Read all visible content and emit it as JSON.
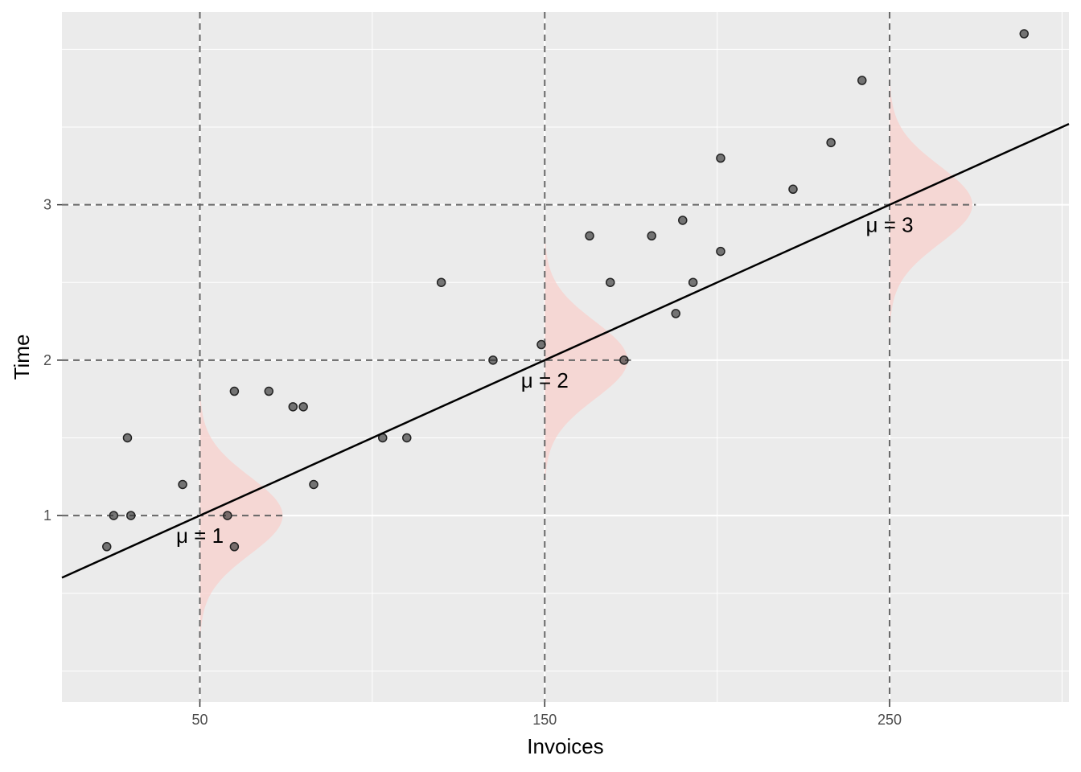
{
  "chart_data": {
    "type": "scatter",
    "title": "",
    "xlabel": "Invoices",
    "ylabel": "Time",
    "xlim": [
      10,
      302
    ],
    "ylim": [
      -0.2,
      4.24
    ],
    "x_ticks": [
      50,
      150,
      250
    ],
    "x_tick_labels": [
      "50",
      "150",
      "250"
    ],
    "x_minor_gridlines": [
      100,
      200,
      300
    ],
    "y_ticks": [
      1,
      2,
      3
    ],
    "y_tick_labels": [
      "1",
      "2",
      "3"
    ],
    "y_minor_gridlines": [
      0.0,
      0.5,
      1.5,
      2.5,
      3.5,
      4.0
    ],
    "grid": true,
    "legend": "none",
    "points": [
      {
        "x": 23,
        "y": 0.8
      },
      {
        "x": 25,
        "y": 1.0
      },
      {
        "x": 29,
        "y": 1.5
      },
      {
        "x": 30,
        "y": 1.0
      },
      {
        "x": 45,
        "y": 1.2
      },
      {
        "x": 58,
        "y": 1.0
      },
      {
        "x": 60,
        "y": 1.8
      },
      {
        "x": 60,
        "y": 0.8
      },
      {
        "x": 70,
        "y": 1.8
      },
      {
        "x": 77,
        "y": 1.7
      },
      {
        "x": 80,
        "y": 1.7
      },
      {
        "x": 83,
        "y": 1.2
      },
      {
        "x": 103,
        "y": 1.5
      },
      {
        "x": 110,
        "y": 1.5
      },
      {
        "x": 120,
        "y": 2.5
      },
      {
        "x": 135,
        "y": 2.0
      },
      {
        "x": 149,
        "y": 2.1
      },
      {
        "x": 163,
        "y": 2.8
      },
      {
        "x": 169,
        "y": 2.5
      },
      {
        "x": 173,
        "y": 2.0
      },
      {
        "x": 181,
        "y": 2.8
      },
      {
        "x": 188,
        "y": 2.3
      },
      {
        "x": 190,
        "y": 2.9
      },
      {
        "x": 193,
        "y": 2.5
      },
      {
        "x": 201,
        "y": 3.3
      },
      {
        "x": 201,
        "y": 2.7
      },
      {
        "x": 222,
        "y": 3.1
      },
      {
        "x": 233,
        "y": 3.4
      },
      {
        "x": 242,
        "y": 3.8
      },
      {
        "x": 289,
        "y": 4.1
      }
    ],
    "regression_line": {
      "intercept": 0.5,
      "slope": 0.01
    },
    "reference_lines": [
      {
        "x": 50,
        "y": 1
      },
      {
        "x": 150,
        "y": 2
      },
      {
        "x": 250,
        "y": 3
      }
    ],
    "distributions": [
      {
        "x": 50,
        "mean": 1,
        "sd": 0.25,
        "peak_width_x": 24
      },
      {
        "x": 150,
        "mean": 2,
        "sd": 0.25,
        "peak_width_x": 24
      },
      {
        "x": 250,
        "mean": 3,
        "sd": 0.25,
        "peak_width_x": 24
      }
    ],
    "annotations": [
      {
        "text": "μ = 1",
        "x": 50,
        "y": 0.86
      },
      {
        "text": "μ = 2",
        "x": 150,
        "y": 1.86
      },
      {
        "text": "μ = 3",
        "x": 250,
        "y": 2.86
      }
    ],
    "colors": {
      "panel": "#ebebeb",
      "grid": "#ffffff",
      "points": "#333333",
      "line": "#000000",
      "reference": "#666666",
      "density_fill": "#f8d0cc"
    }
  }
}
